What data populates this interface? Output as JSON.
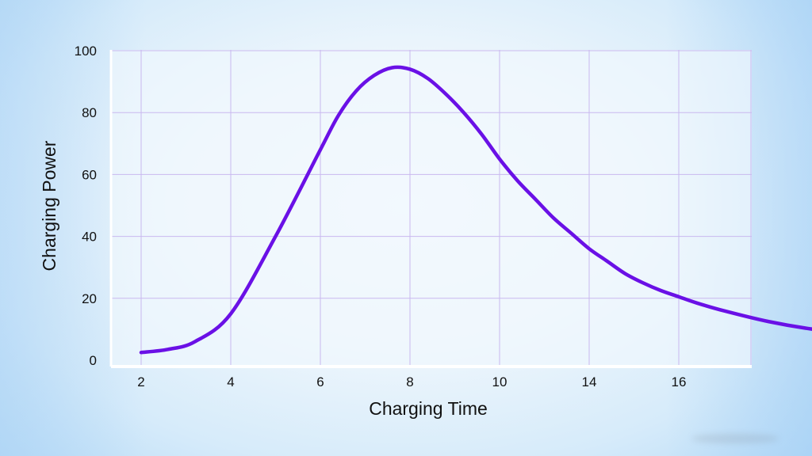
{
  "chart_data": {
    "type": "line",
    "title": "",
    "xlabel": "Charging Time",
    "ylabel": "Charging Power",
    "x_tick_labels": [
      "2",
      "4",
      "6",
      "8",
      "10",
      "14",
      "16"
    ],
    "y_ticks": [
      0,
      20,
      40,
      60,
      80,
      100
    ],
    "y_tick_labels": [
      "0",
      "20",
      "40",
      "60",
      "80",
      "100"
    ],
    "ylim": [
      0,
      100
    ],
    "grid": true,
    "colors": {
      "line": "#6a10e6",
      "grid": "#c9b8ef",
      "axis": "#ffffff"
    },
    "series": [
      {
        "x_tick_positions": [
          0,
          0.3,
          0.6,
          1,
          1.5,
          2,
          2.2,
          2.4,
          2.6,
          2.8,
          3,
          3.2,
          3.4,
          3.6,
          3.8,
          4,
          4.2,
          4.4,
          4.6,
          4.8,
          5,
          5.2,
          5.4,
          5.6,
          5.8,
          6,
          6.2,
          6.5,
          7,
          7.5,
          8,
          8.5,
          9,
          9.5,
          10,
          10.5,
          11,
          11.5,
          12,
          12.5,
          13
        ],
        "values": [
          2.5,
          3.5,
          6,
          15,
          40,
          68,
          79,
          87,
          92,
          94.5,
          94,
          91,
          86,
          80,
          73,
          65,
          58,
          52,
          46,
          41,
          36,
          32,
          28,
          25,
          22.5,
          20.5,
          18.5,
          16,
          12.5,
          10,
          8.5,
          7.2,
          6.3,
          5.5,
          4.9,
          4.4,
          3.9,
          3.5,
          3.2,
          2.9,
          2.6
        ]
      }
    ]
  }
}
